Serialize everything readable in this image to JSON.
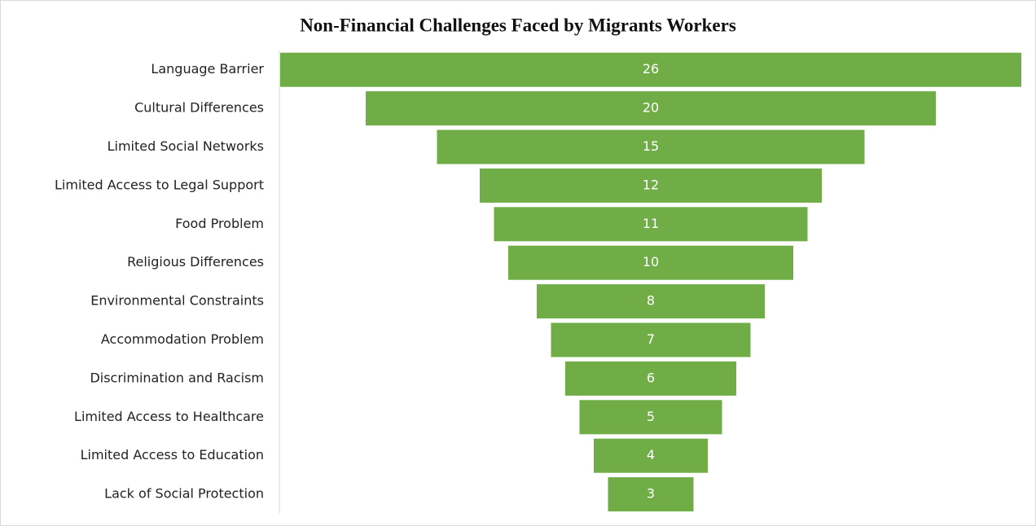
{
  "chart_data": {
    "type": "funnel",
    "title": "Non-Financial Challenges Faced by Migrants Workers",
    "categories": [
      "Language Barrier",
      "Cultural Differences",
      "Limited Social Networks",
      "Limited Access to Legal Support",
      "Food Problem",
      "Religious Differences",
      "Environmental Constraints",
      "Accommodation Problem",
      "Discrimination and Racism",
      "Limited Access to Healthcare",
      "Limited Access to Education",
      "Lack of Social Protection"
    ],
    "values": [
      26,
      20,
      15,
      12,
      11,
      10,
      8,
      7,
      6,
      5,
      4,
      3
    ],
    "color": "#70ad47"
  }
}
